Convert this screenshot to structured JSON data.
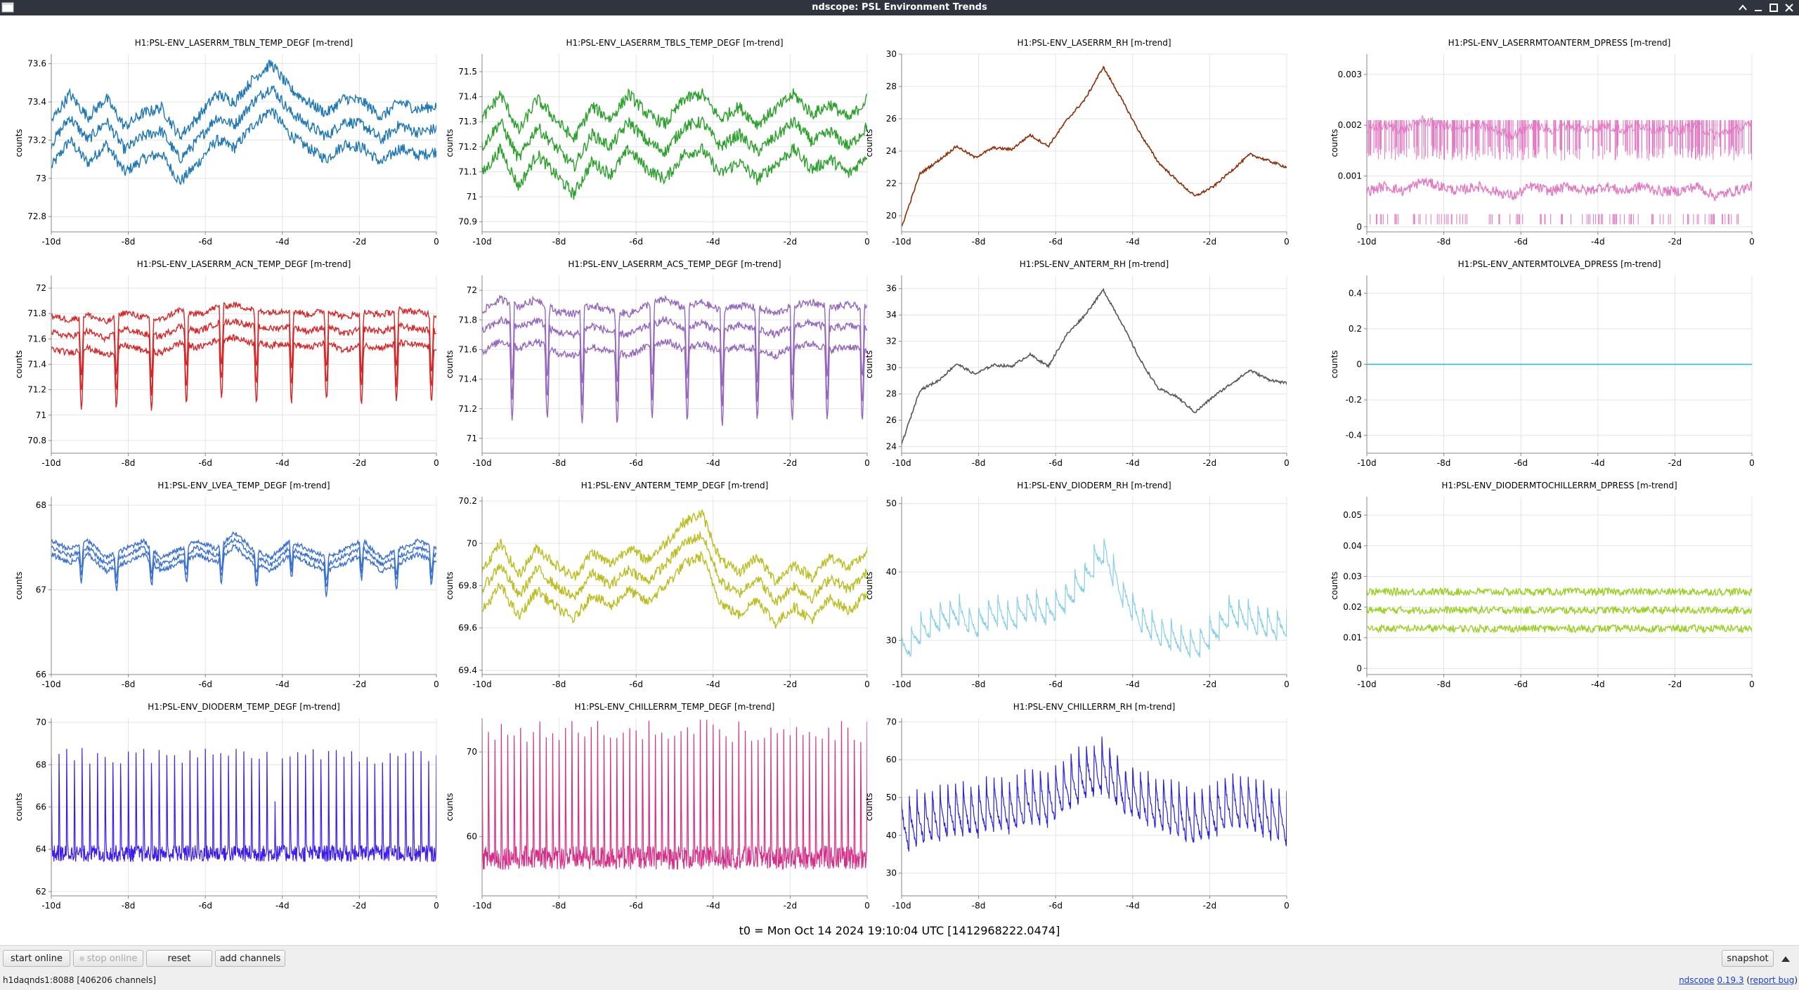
{
  "window": {
    "title": "ndscope: PSL Environment Trends"
  },
  "x_axis": {
    "ticks": [
      "-10d",
      "-8d",
      "-6d",
      "-4d",
      "-2d",
      "0"
    ]
  },
  "y_axis_label": "counts",
  "plots": [
    {
      "title": "H1:PSL-ENV_LASERRM_TBLN_TEMP_DEGF [m-trend]",
      "color": "#1f77b4",
      "style": "bands3",
      "ylim": [
        72.72,
        73.65
      ],
      "yticks": [
        73.6,
        73.4,
        73.2,
        73,
        72.8
      ],
      "ytick_labels": [
        "73.6",
        "73.4",
        "73.2",
        "73",
        "72.8"
      ],
      "trend": [
        73.18,
        73.32,
        73.2,
        73.3,
        73.15,
        73.22,
        73.25,
        73.1,
        73.2,
        73.32,
        73.28,
        73.4,
        73.48,
        73.35,
        73.28,
        73.22,
        73.3,
        73.28,
        73.2,
        73.28,
        73.24,
        73.26
      ],
      "spread": 0.12,
      "noise": 0.03
    },
    {
      "title": "H1:PSL-ENV_LASERRM_TBLS_TEMP_DEGF [m-trend]",
      "color": "#2ca02c",
      "style": "bands3",
      "ylim": [
        70.86,
        71.57
      ],
      "yticks": [
        71.5,
        71.4,
        71.3,
        71.2,
        71.1,
        71,
        70.9
      ],
      "ytick_labels": [
        "71.5",
        "71.4",
        "71.3",
        "71.2",
        "71.1",
        "71",
        "70.9"
      ],
      "trend": [
        71.2,
        71.3,
        71.15,
        71.28,
        71.2,
        71.12,
        71.25,
        71.2,
        71.3,
        71.22,
        71.18,
        71.28,
        71.3,
        71.2,
        71.25,
        71.18,
        71.24,
        71.3,
        71.22,
        71.26,
        71.2,
        71.28
      ],
      "spread": 0.11,
      "noise": 0.025
    },
    {
      "title": "H1:PSL-ENV_LASERRM_RH [m-trend]",
      "color": "#8c2d04",
      "style": "smooth",
      "ylim": [
        19,
        30
      ],
      "yticks": [
        30,
        28,
        26,
        24,
        22,
        20
      ],
      "ytick_labels": [
        "30",
        "28",
        "26",
        "24",
        "22",
        "20"
      ],
      "trend": [
        19.3,
        22.6,
        23.4,
        24.3,
        23.6,
        24.2,
        24.1,
        25.0,
        24.3,
        25.9,
        27.2,
        29.2,
        27.2,
        25.1,
        23.3,
        22.2,
        21.2,
        21.8,
        22.8,
        23.8,
        23.4,
        23.0
      ],
      "spread": 0,
      "noise": 0.08
    },
    {
      "title": "H1:PSL-ENV_LASERRMTOANTERM_DPRESS [m-trend]",
      "color": "#e377c2",
      "style": "dpress",
      "ylim": [
        -0.0001,
        0.0034
      ],
      "yticks": [
        0.003,
        0.002,
        0.001,
        0
      ],
      "ytick_labels": [
        "0.003",
        "0.002",
        "0.001",
        "0"
      ],
      "trend": [
        0.0007,
        0.0008,
        0.0007,
        0.0009,
        0.0008,
        0.0007,
        0.0008,
        0.0007,
        0.0006,
        0.0008,
        0.0007,
        0.0008,
        0.0007,
        0.0008,
        0.0007,
        0.0008,
        0.0007,
        0.0007,
        0.0008,
        0.0006,
        0.0007,
        0.0008
      ],
      "spread": 0,
      "noise": 0.0001
    },
    {
      "title": "H1:PSL-ENV_LASERRM_ACN_TEMP_DEGF [m-trend]",
      "color": "#d62728",
      "style": "dips3",
      "ylim": [
        70.7,
        72.1
      ],
      "yticks": [
        72,
        71.8,
        71.6,
        71.4,
        71.2,
        71,
        70.8
      ],
      "ytick_labels": [
        "72",
        "71.8",
        "71.6",
        "71.4",
        "71.2",
        "71",
        "70.8"
      ],
      "trend": [
        71.65,
        71.62,
        71.66,
        71.6,
        71.68,
        71.64,
        71.62,
        71.7,
        71.66,
        71.72,
        71.74,
        71.7,
        71.68,
        71.7,
        71.66,
        71.7,
        71.64,
        71.68,
        71.66,
        71.7,
        71.68,
        71.66
      ],
      "spread": 0.13,
      "noise": 0.025
    },
    {
      "title": "H1:PSL-ENV_LASERRM_ACS_TEMP_DEGF [m-trend]",
      "color": "#9467bd",
      "style": "dips3",
      "ylim": [
        70.9,
        72.1
      ],
      "yticks": [
        72,
        71.8,
        71.6,
        71.4,
        71.2,
        71
      ],
      "ytick_labels": [
        "72",
        "71.8",
        "71.6",
        "71.4",
        "71.2",
        "71"
      ],
      "trend": [
        71.72,
        71.8,
        71.75,
        71.8,
        71.72,
        71.7,
        71.76,
        71.72,
        71.7,
        71.76,
        71.8,
        71.74,
        71.78,
        71.72,
        71.76,
        71.74,
        71.7,
        71.76,
        71.78,
        71.74,
        71.76,
        71.74
      ],
      "spread": 0.14,
      "noise": 0.025
    },
    {
      "title": "H1:PSL-ENV_ANTERM_RH [m-trend]",
      "color": "#555555",
      "style": "smooth",
      "ylim": [
        23.5,
        37
      ],
      "yticks": [
        36,
        34,
        32,
        30,
        28,
        26,
        24
      ],
      "ytick_labels": [
        "36",
        "34",
        "32",
        "30",
        "28",
        "26",
        "24"
      ],
      "trend": [
        24.2,
        28.3,
        29.0,
        30.3,
        29.5,
        30.2,
        30.1,
        31.0,
        30.1,
        32.5,
        34.0,
        35.9,
        33.4,
        30.6,
        28.4,
        27.8,
        26.6,
        27.8,
        28.8,
        29.8,
        29.1,
        28.8
      ],
      "spread": 0,
      "noise": 0.1
    },
    {
      "title": "H1:PSL-ENV_ANTERMTOLVEA_DPRESS [m-trend]",
      "color": "#17becf",
      "style": "flat",
      "ylim": [
        -0.5,
        0.5
      ],
      "yticks": [
        0.4,
        0.2,
        0,
        -0.2,
        -0.4
      ],
      "ytick_labels": [
        "0.4",
        "0.2",
        "0",
        "-0.2",
        "-0.4"
      ],
      "trend": [
        0,
        0
      ],
      "spread": 0,
      "noise": 0
    },
    {
      "title": "H1:PSL-ENV_LVEA_TEMP_DEGF [m-trend]",
      "color": "#3a70d0",
      "style": "dips3",
      "ylim": [
        66,
        68.1
      ],
      "yticks": [
        68,
        67,
        66
      ],
      "ytick_labels": [
        "68",
        "67",
        "66"
      ],
      "trend": [
        67.5,
        67.4,
        67.5,
        67.3,
        67.4,
        67.5,
        67.3,
        67.4,
        67.5,
        67.4,
        67.6,
        67.4,
        67.3,
        67.5,
        67.4,
        67.3,
        67.4,
        67.5,
        67.3,
        67.4,
        67.5,
        67.4
      ],
      "spread": 0.08,
      "noise": 0.03
    },
    {
      "title": "H1:PSL-ENV_ANTERM_TEMP_DEGF [m-trend]",
      "color": "#bcbd22",
      "style": "bands3",
      "ylim": [
        69.38,
        70.22
      ],
      "yticks": [
        70.2,
        70,
        69.8,
        69.6,
        69.4
      ],
      "ytick_labels": [
        "70.2",
        "70",
        "69.8",
        "69.6",
        "69.4"
      ],
      "trend": [
        69.78,
        69.9,
        69.75,
        69.88,
        69.8,
        69.74,
        69.86,
        69.8,
        69.88,
        69.82,
        69.9,
        70.0,
        70.04,
        69.82,
        69.76,
        69.84,
        69.72,
        69.8,
        69.74,
        69.84,
        69.78,
        69.86
      ],
      "spread": 0.1,
      "noise": 0.025
    },
    {
      "title": "H1:PSL-ENV_DIODERM_RH [m-trend]",
      "color": "#87ceeb",
      "style": "sawtooth",
      "ylim": [
        25,
        51
      ],
      "yticks": [
        50,
        40,
        30
      ],
      "ytick_labels": [
        "50",
        "40",
        "30"
      ],
      "trend": [
        29,
        32,
        34,
        35,
        33,
        35,
        34,
        36,
        35,
        37,
        40,
        44,
        38,
        34,
        32,
        31,
        30,
        32,
        35,
        34,
        33,
        33
      ],
      "spread": 0,
      "noise": 0.4,
      "amp": 5,
      "cycles": 40
    },
    {
      "title": "H1:PSL-ENV_DIODERMTOCHILLERRM_DPRESS [m-trend]",
      "color": "#9bd025",
      "style": "bands3",
      "ylim": [
        -0.002,
        0.056
      ],
      "yticks": [
        0.05,
        0.04,
        0.03,
        0.02,
        0.01,
        0
      ],
      "ytick_labels": [
        "0.05",
        "0.04",
        "0.03",
        "0.02",
        "0.01",
        "0"
      ],
      "trend": [
        0.019,
        0.019,
        0.019,
        0.019,
        0.019,
        0.019,
        0.019,
        0.019,
        0.019,
        0.019,
        0.019,
        0.019,
        0.019,
        0.019,
        0.019,
        0.019,
        0.019,
        0.019,
        0.019,
        0.019,
        0.019,
        0.019
      ],
      "spread": 0.006,
      "noise": 0.0012
    },
    {
      "title": "H1:PSL-ENV_DIODERM_TEMP_DEGF [m-trend]",
      "color": "#3b1bf0",
      "style": "spikes",
      "ylim": [
        61.8,
        70.2
      ],
      "yticks": [
        70,
        68,
        66,
        64,
        62
      ],
      "ytick_labels": [
        "70",
        "68",
        "66",
        "64",
        "62"
      ],
      "trend": [
        63.8,
        63.8,
        63.8,
        63.8,
        63.8,
        63.8,
        63.8,
        63.8,
        63.8,
        63.8,
        63.8,
        63.8,
        63.8,
        63.8,
        63.8,
        63.8,
        63.8,
        63.8,
        63.8,
        63.8,
        63.8,
        63.8
      ],
      "spread": 0,
      "noise": 0.4,
      "amp": 4.6,
      "cycles": 50
    },
    {
      "title": "H1:PSL-ENV_CHILLERRM_TEMP_DEGF [m-trend]",
      "color": "#d62f87",
      "style": "spikes",
      "ylim": [
        53,
        74
      ],
      "yticks": [
        70,
        60
      ],
      "ytick_labels": [
        "70",
        "60"
      ],
      "trend": [
        57.5,
        57.5,
        57.5,
        57.5,
        57.5,
        57.5,
        57.5,
        57.5,
        57.5,
        57.5,
        57.5,
        57.5,
        57.5,
        57.5,
        57.5,
        57.5,
        57.5,
        57.5,
        57.5,
        57.5,
        57.5,
        57.5
      ],
      "spread": 0,
      "noise": 1.4,
      "amp": 15,
      "cycles": 60
    },
    {
      "title": "H1:PSL-ENV_CHILLERRM_RH [m-trend]",
      "color": "#2a22e0",
      "style": "sawtooth",
      "ylim": [
        24,
        71
      ],
      "yticks": [
        70,
        60,
        50,
        40,
        30
      ],
      "ytick_labels": [
        "70",
        "60",
        "50",
        "40",
        "30"
      ],
      "trend": [
        44,
        46,
        47,
        49,
        48,
        50,
        49,
        52,
        51,
        55,
        58,
        60,
        55,
        52,
        50,
        48,
        46,
        48,
        51,
        50,
        48,
        46
      ],
      "spread": 0,
      "noise": 1.0,
      "amp": 16,
      "cycles": 50
    }
  ],
  "t0_label": "t0 = Mon Oct 14 2024 19:10:04 UTC [1412968222.0474]",
  "controls": {
    "start_online": "start online",
    "stop_online": "stop online",
    "reset": "reset",
    "add_channels": "add channels",
    "snapshot": "snapshot"
  },
  "status": {
    "text": "h1daqnds1:8088  [406206 channels]",
    "ndscope_link": "ndscope",
    "version_link": "0.19.3",
    "report_bug_link": "report bug"
  }
}
